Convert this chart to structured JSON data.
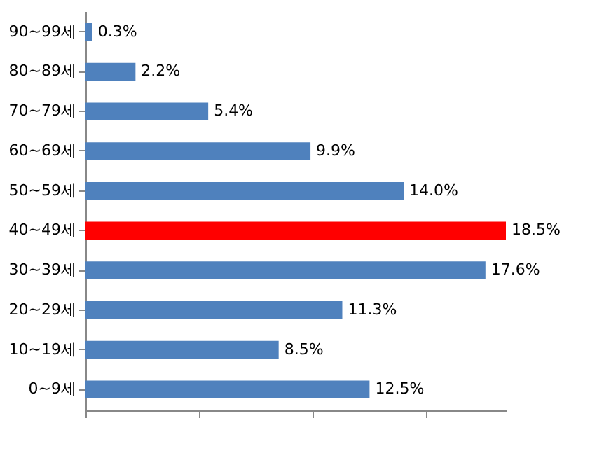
{
  "chart_data": {
    "type": "bar",
    "orientation": "horizontal",
    "categories": [
      "90~99세",
      "80~89세",
      "70~79세",
      "60~69세",
      "50~59세",
      "40~49세",
      "30~39세",
      "20~29세",
      "10~19세",
      "0~9세"
    ],
    "values": [
      0.3,
      2.2,
      5.4,
      9.9,
      14.0,
      18.5,
      17.6,
      11.3,
      8.5,
      12.5
    ],
    "colors": [
      "#4f81bd",
      "#4f81bd",
      "#4f81bd",
      "#4f81bd",
      "#4f81bd",
      "#ff0000",
      "#4f81bd",
      "#4f81bd",
      "#4f81bd",
      "#4f81bd"
    ],
    "value_labels": [
      "0.3%",
      "2.2%",
      "5.4%",
      "9.9%",
      "14.0%",
      "18.5%",
      "17.6%",
      "11.3%",
      "8.5%",
      "12.5%"
    ],
    "tick_labels": "y"
  }
}
